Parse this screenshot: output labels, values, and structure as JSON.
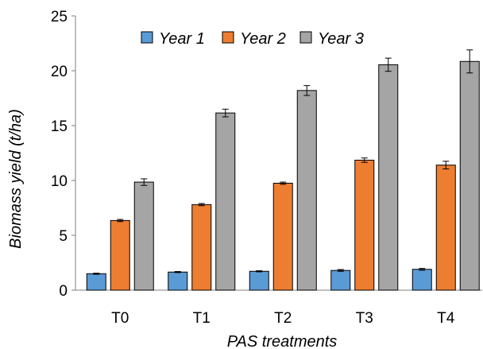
{
  "chart_data": {
    "type": "bar",
    "title": "",
    "xlabel": "PAS treatments",
    "ylabel": "Biomass yield (t/ha)",
    "ylim": [
      0,
      25
    ],
    "yticks": [
      "0",
      "5",
      "10",
      "15",
      "20",
      "25"
    ],
    "categories": [
      "T0",
      "T1",
      "T2",
      "T3",
      "T4"
    ],
    "series": [
      {
        "name": "Year 1",
        "color": "#5b9bd5",
        "values": [
          1.5,
          1.65,
          1.72,
          1.8,
          1.9
        ],
        "errors": [
          0.05,
          0.05,
          0.05,
          0.08,
          0.08
        ]
      },
      {
        "name": "Year 2",
        "color": "#ed7d31",
        "values": [
          6.35,
          7.8,
          9.75,
          11.85,
          11.4
        ],
        "errors": [
          0.1,
          0.1,
          0.1,
          0.2,
          0.35
        ]
      },
      {
        "name": "Year 3",
        "color": "#a5a5a5",
        "values": [
          9.85,
          16.15,
          18.2,
          20.55,
          20.85
        ],
        "errors": [
          0.3,
          0.35,
          0.45,
          0.6,
          1.05
        ]
      }
    ],
    "legend_position": "top",
    "grid": false
  }
}
